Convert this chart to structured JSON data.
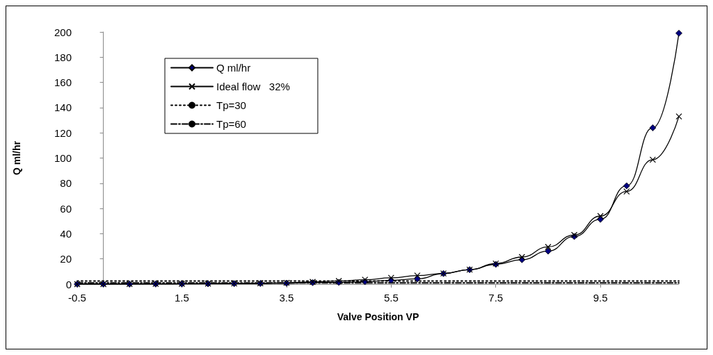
{
  "chart_data": {
    "type": "line",
    "xlabel": "Valve Position VP",
    "ylabel": "Q ml/hr",
    "x": [
      -0.5,
      0,
      0.5,
      1,
      1.5,
      2,
      2.5,
      3,
      3.5,
      4,
      4.5,
      5,
      5.5,
      6,
      6.5,
      7,
      7.5,
      8,
      8.5,
      9,
      9.5,
      10,
      10.5,
      11
    ],
    "series": [
      {
        "name": "Q ml/hr",
        "color": "#000080",
        "marker": "diamond",
        "line_style": "solid",
        "values": [
          0,
          0,
          0,
          0.1,
          0.2,
          0.3,
          0.4,
          0.5,
          0.7,
          1.2,
          1.4,
          2,
          3,
          4.2,
          8.4,
          11.5,
          15.7,
          19.4,
          26.2,
          37.8,
          51.4,
          78,
          124,
          199
        ]
      },
      {
        "name": "Ideal flow   32%",
        "color": "#000000",
        "marker": "cross",
        "line_style": "solid",
        "values": [
          0,
          0,
          0.1,
          0.2,
          0.3,
          0.4,
          0.5,
          0.7,
          1,
          1.8,
          2.5,
          3.5,
          5,
          6.8,
          8.5,
          11.5,
          16.3,
          21.5,
          29.5,
          39,
          54,
          73.5,
          98.7,
          133
        ]
      },
      {
        "name": "Tp=30",
        "color": "#000000",
        "marker": "none",
        "line_style": "dotted",
        "values": [
          2.5,
          2.5,
          2.5,
          2.5,
          2.5,
          2.5,
          2.5,
          2.5,
          2.5,
          2.5,
          2.5,
          2.5,
          2.5,
          2.5,
          2.5,
          2.5,
          2.5,
          2.5,
          2.5,
          2.5,
          2.5,
          2.5,
          2.5,
          2.5
        ]
      },
      {
        "name": "Tp=60",
        "color": "#000000",
        "marker": "none",
        "line_style": "dashed",
        "values": [
          1,
          1,
          1,
          1,
          1,
          1,
          1,
          1,
          1,
          1,
          1,
          1,
          1,
          1,
          1,
          1,
          1,
          1,
          1,
          1,
          1,
          1,
          1,
          1
        ]
      }
    ],
    "xlim": [
      -0.5,
      11
    ],
    "xticks": [
      -0.5,
      1.5,
      3.5,
      5.5,
      7.5,
      9.5
    ],
    "ylim": [
      0,
      200
    ],
    "yticks": [
      0,
      20,
      40,
      60,
      80,
      100,
      120,
      140,
      160,
      180,
      200
    ],
    "grid": false,
    "legend": "top left"
  }
}
